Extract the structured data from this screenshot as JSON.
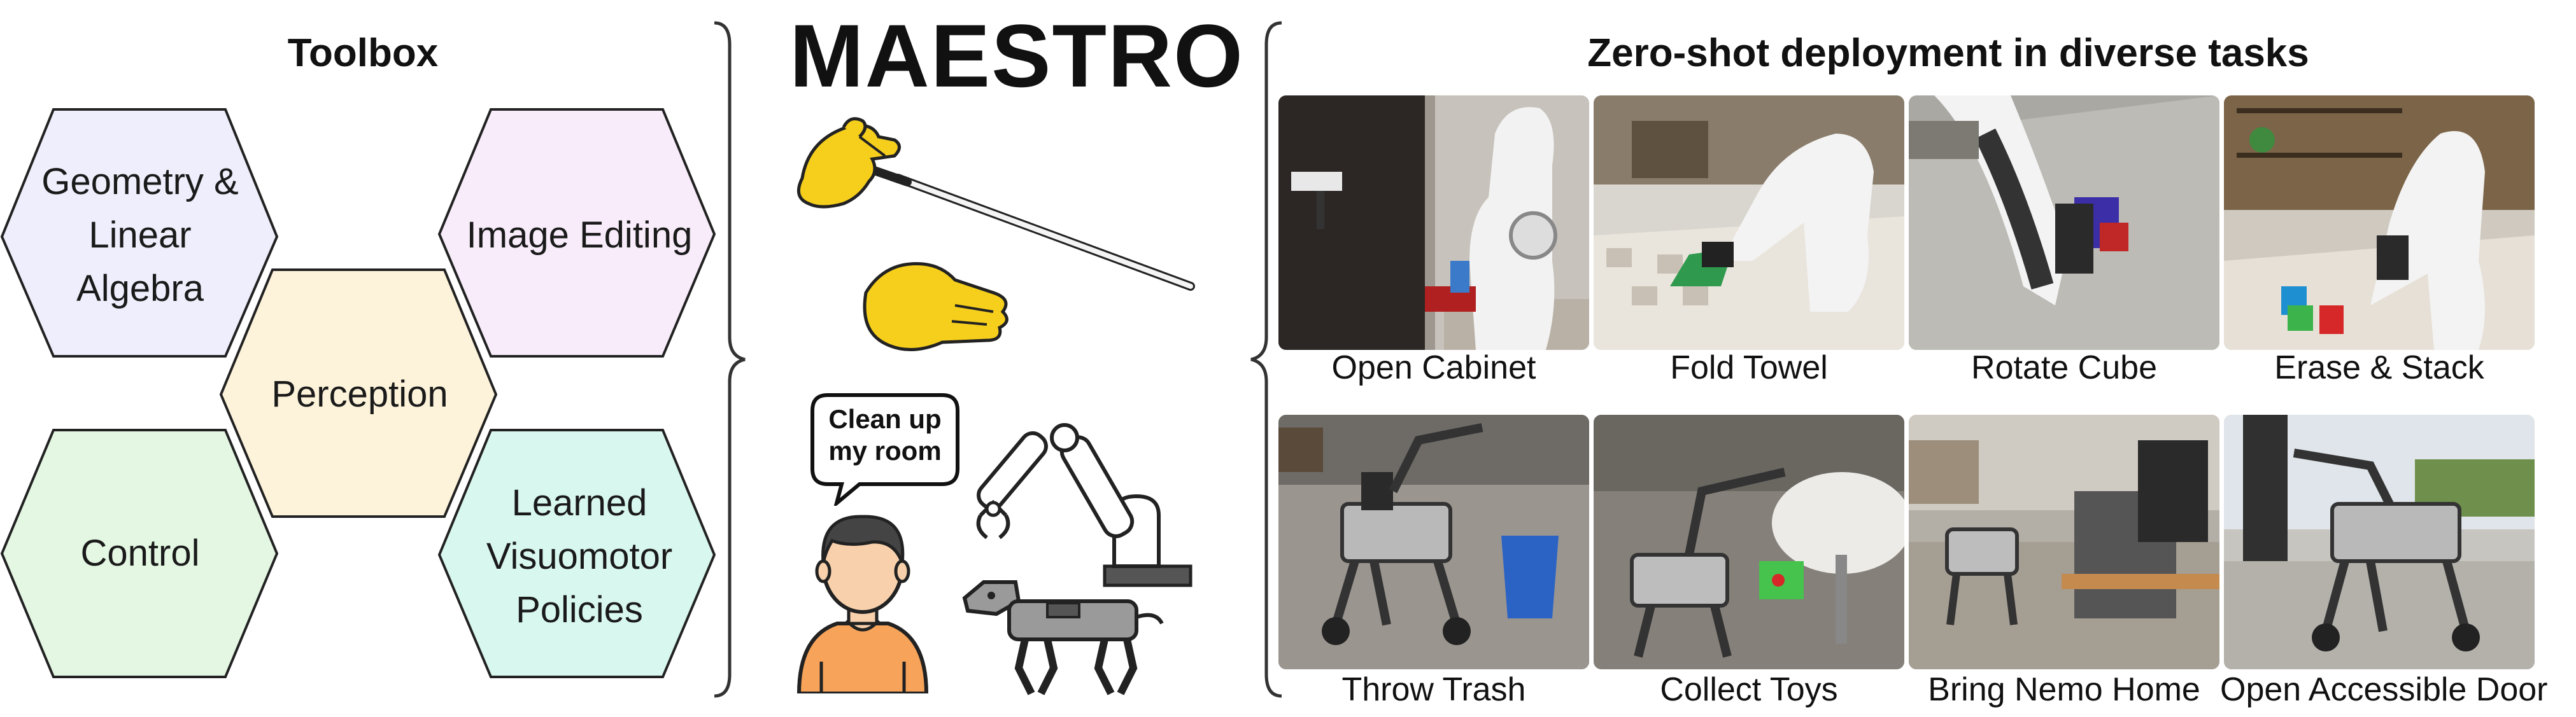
{
  "toolbox": {
    "title": "Toolbox",
    "items": [
      {
        "label": "Geometry & Linear Algebra",
        "lines": [
          "Geometry &",
          "Linear",
          "Algebra"
        ],
        "color": "#eeeefc"
      },
      {
        "label": "Image Editing",
        "lines": [
          "Image Editing"
        ],
        "color": "#f8ecfa"
      },
      {
        "label": "Perception",
        "lines": [
          "Perception"
        ],
        "color": "#fdf3da"
      },
      {
        "label": "Control",
        "lines": [
          "Control"
        ],
        "color": "#e3f7e3"
      },
      {
        "label": "Learned Visuomotor Policies",
        "lines": [
          "Learned",
          "Visuomotor",
          "Policies"
        ],
        "color": "#d8f7ee"
      }
    ]
  },
  "center": {
    "title": "MAESTRO",
    "speech_bubble": [
      "Clean up",
      "my room"
    ],
    "icons": [
      "conductor-gloves-icon",
      "baton-icon",
      "person-icon",
      "robot-arm-icon",
      "robot-dog-icon"
    ]
  },
  "deployment": {
    "title": "Zero-shot deployment in diverse tasks",
    "tasks": [
      {
        "caption": "Open Cabinet",
        "scene": "cabinet"
      },
      {
        "caption": "Fold Towel",
        "scene": "towel"
      },
      {
        "caption": "Rotate Cube",
        "scene": "cube"
      },
      {
        "caption": "Erase & Stack",
        "scene": "stack"
      },
      {
        "caption": "Throw Trash",
        "scene": "trash"
      },
      {
        "caption": "Collect Toys",
        "scene": "toys"
      },
      {
        "caption": "Bring Nemo Home",
        "scene": "nemo"
      },
      {
        "caption": "Open Accessible Door",
        "scene": "door"
      }
    ]
  },
  "colors": {
    "glove": "#f6cf1c",
    "skin": "#f8d1ac",
    "hair": "#444444",
    "shirt": "#f7a45a",
    "robot": "#ffffff",
    "dog": "#9a9a9a"
  }
}
